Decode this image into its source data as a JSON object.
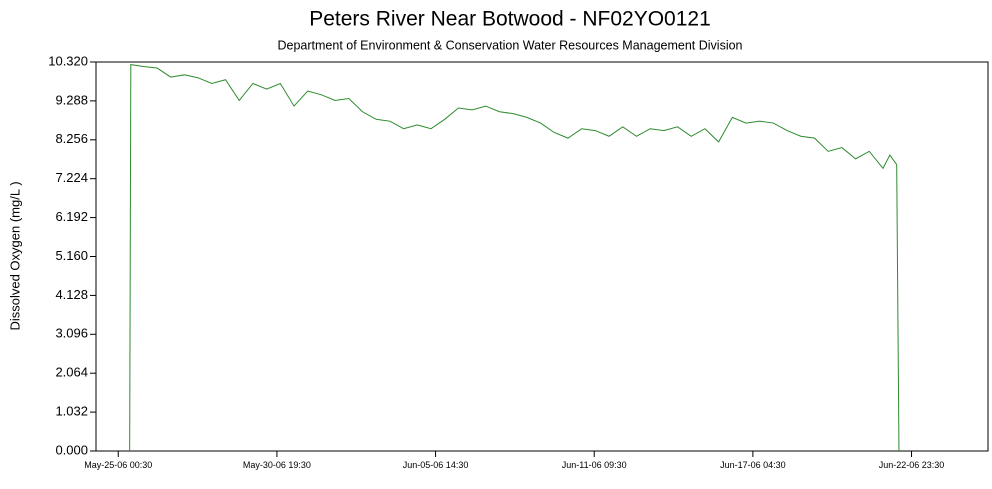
{
  "chart_data": {
    "type": "line",
    "title": "Peters River Near Botwood - NF02YO0121",
    "subtitle": "Department of Environment & Conservation Water Resources Management Division",
    "y_label": "Dissolved Oxygen (mg/L )",
    "xlim": [
      "May-24-06 05:00",
      "Jun-25-06 18:30"
    ],
    "xticks": [
      "May-25-06 00:30",
      "May-30-06 19:30",
      "Jun-05-06 14:30",
      "Jun-11-06 09:30",
      "Jun-17-06 04:30",
      "Jun-22-06 23:30"
    ],
    "ylim": [
      0,
      10.32
    ],
    "yticks": [
      {
        "value": 0,
        "label": "0.000"
      },
      1.032,
      2.064,
      3.096,
      4.128,
      {
        "value": 5.16,
        "label": "5.160"
      },
      6.192,
      7.224,
      8.256,
      9.288,
      {
        "value": 10.32,
        "label": "10.320"
      }
    ],
    "x": [
      "May-25-06 10:30",
      "May-25-06 11:30",
      "May-25-06 22:30",
      "May-26-06 10:30",
      "May-26-06 22:30",
      "May-27-06 10:30",
      "May-27-06 22:30",
      "May-28-06 10:30",
      "May-28-06 22:30",
      "May-29-06 10:30",
      "May-29-06 22:30",
      "May-30-06 10:30",
      "May-30-06 22:30",
      "May-31-06 10:30",
      "May-31-06 22:30",
      "Jun-01-06 10:30",
      "Jun-01-06 22:30",
      "Jun-02-06 10:30",
      "Jun-02-06 22:30",
      "Jun-03-06 10:30",
      "Jun-03-06 22:30",
      "Jun-04-06 10:30",
      "Jun-04-06 22:30",
      "Jun-05-06 10:30",
      "Jun-05-06 22:30",
      "Jun-06-06 10:30",
      "Jun-06-06 22:30",
      "Jun-07-06 10:30",
      "Jun-07-06 22:30",
      "Jun-08-06 10:30",
      "Jun-08-06 22:30",
      "Jun-09-06 10:30",
      "Jun-09-06 22:30",
      "Jun-10-06 10:30",
      "Jun-10-06 22:30",
      "Jun-11-06 10:30",
      "Jun-11-06 22:30",
      "Jun-12-06 10:30",
      "Jun-12-06 22:30",
      "Jun-13-06 10:30",
      "Jun-13-06 22:30",
      "Jun-14-06 10:30",
      "Jun-14-06 22:30",
      "Jun-15-06 10:30",
      "Jun-15-06 22:30",
      "Jun-16-06 10:30",
      "Jun-16-06 22:30",
      "Jun-17-06 10:30",
      "Jun-17-06 22:30",
      "Jun-18-06 10:30",
      "Jun-18-06 22:30",
      "Jun-19-06 10:30",
      "Jun-19-06 22:30",
      "Jun-20-06 10:30",
      "Jun-20-06 22:30",
      "Jun-21-06 10:30",
      "Jun-21-06 22:30",
      "Jun-22-06 04:30",
      "Jun-22-06 10:30",
      "Jun-22-06 12:30"
    ],
    "series": [
      {
        "name": "Dissolved Oxygen",
        "color": "#2e8b2e",
        "values": [
          0,
          10.25,
          10.2,
          10.16,
          9.92,
          9.98,
          9.9,
          9.75,
          9.85,
          9.3,
          9.75,
          9.6,
          9.75,
          9.15,
          9.55,
          9.45,
          9.3,
          9.35,
          9.0,
          8.8,
          8.75,
          8.55,
          8.65,
          8.55,
          8.8,
          9.1,
          9.05,
          9.15,
          9.0,
          8.95,
          8.85,
          8.7,
          8.45,
          8.3,
          8.55,
          8.5,
          8.35,
          8.6,
          8.35,
          8.55,
          8.5,
          8.6,
          8.35,
          8.55,
          8.2,
          8.85,
          8.7,
          8.75,
          8.7,
          8.5,
          8.35,
          8.3,
          7.95,
          8.05,
          7.75,
          7.95,
          7.5,
          7.85,
          7.6,
          0
        ]
      }
    ]
  }
}
